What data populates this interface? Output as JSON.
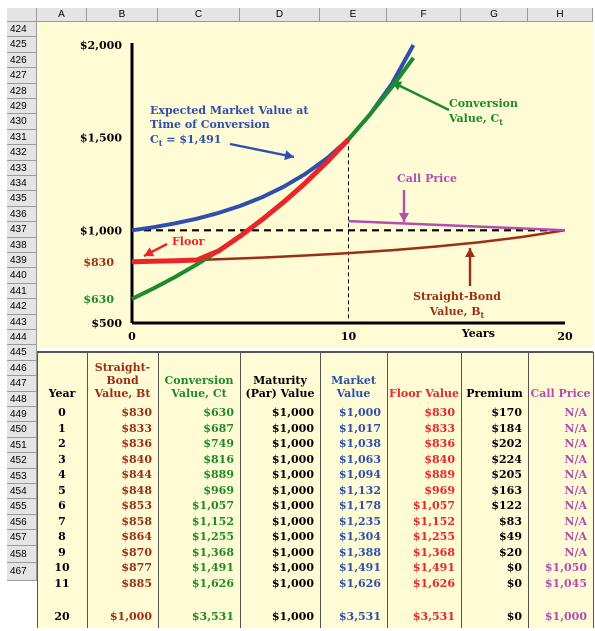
{
  "columns": [
    "A",
    "B",
    "C",
    "D",
    "E",
    "F",
    "G",
    "H"
  ],
  "rows": [
    "424",
    "425",
    "426",
    "427",
    "428",
    "429",
    "430",
    "431",
    "432",
    "433",
    "434",
    "435",
    "436",
    "437",
    "438",
    "439",
    "440",
    "441",
    "442",
    "443",
    "444",
    "445",
    "446",
    "447",
    "448",
    "449",
    "450",
    "451",
    "452",
    "453",
    "454",
    "455",
    "456",
    "457",
    "458",
    "467"
  ],
  "colors": {
    "bond": "#9b2f13",
    "conversion": "#1d8a2e",
    "market": "#2f4fae",
    "floor": "#e8262a",
    "call": "#b04fb0",
    "black": "#000000"
  },
  "chart_data": {
    "type": "line",
    "ylim": [
      500,
      2000
    ],
    "xlim": [
      0,
      20
    ],
    "y_ticks": [
      {
        "v": 2000,
        "label": "$2,000"
      },
      {
        "v": 1500,
        "label": "$1,500"
      },
      {
        "v": 1000,
        "label": "$1,000"
      },
      {
        "v": 500,
        "label": "$500"
      }
    ],
    "x_ticks": [
      {
        "v": 0,
        "label": "0"
      },
      {
        "v": 10,
        "label": "10"
      },
      {
        "v": 20,
        "label": "20"
      }
    ],
    "xlabel": "Years",
    "extra_y_labels": [
      {
        "v": 830,
        "label": "$830",
        "color": "#9b2f13"
      },
      {
        "v": 630,
        "label": "$630",
        "color": "#1d8a2e"
      }
    ],
    "series": [
      {
        "key": "market",
        "x": [
          0,
          1,
          2,
          3,
          4,
          5,
          6,
          7,
          8,
          9,
          10,
          11,
          12,
          13
        ],
        "y": [
          1000,
          1017,
          1038,
          1063,
          1094,
          1132,
          1178,
          1235,
          1304,
          1388,
          1491,
          1626,
          1790,
          2000
        ]
      },
      {
        "key": "conversion",
        "x": [
          0,
          1,
          2,
          3,
          4,
          5,
          6,
          7,
          8,
          9,
          10,
          11,
          12,
          13
        ],
        "y": [
          630,
          687,
          749,
          816,
          889,
          969,
          1057,
          1152,
          1255,
          1368,
          1491,
          1626,
          1772,
          1931
        ]
      },
      {
        "key": "floor",
        "x": [
          0,
          1,
          2,
          3,
          4,
          5,
          6,
          7,
          8,
          9,
          10
        ],
        "y": [
          830,
          833,
          836,
          840,
          889,
          969,
          1057,
          1152,
          1255,
          1368,
          1491
        ]
      },
      {
        "key": "bond",
        "x": [
          0,
          2,
          4,
          6,
          8,
          10,
          12,
          14,
          16,
          18,
          20
        ],
        "y": [
          830,
          836,
          844,
          853,
          864,
          877,
          893,
          912,
          935,
          964,
          1000
        ]
      },
      {
        "key": "call",
        "x": [
          10,
          20
        ],
        "y": [
          1050,
          1000
        ]
      }
    ],
    "annotations": {
      "market": [
        "Expected Market Value at",
        "Time of Conversion",
        "C",
        "t",
        "= $1,491"
      ],
      "conversion": [
        "Conversion",
        "Value, C",
        "t"
      ],
      "call": "Call Price",
      "floor": "Floor",
      "bond": [
        "Straight-Bond",
        "Value, B",
        "t"
      ]
    }
  },
  "table": {
    "headers": [
      {
        "text": "Year",
        "color": "#000000"
      },
      {
        "text": "Straight-Bond Value, Bt",
        "color": "#9b2f13"
      },
      {
        "text": "Conversion Value, Ct",
        "color": "#1d8a2e"
      },
      {
        "text": "Maturity (Par) Value",
        "color": "#000000"
      },
      {
        "text": "Market Value",
        "color": "#2f4fae"
      },
      {
        "text": "Floor Value",
        "color": "#e8262a"
      },
      {
        "text": "Premium",
        "color": "#000000"
      },
      {
        "text": "Call Price",
        "color": "#b04fb0"
      }
    ],
    "rows": [
      [
        "0",
        "$830",
        "$630",
        "$1,000",
        "$1,000",
        "$830",
        "$170",
        "N/A"
      ],
      [
        "1",
        "$833",
        "$687",
        "$1,000",
        "$1,017",
        "$833",
        "$184",
        "N/A"
      ],
      [
        "2",
        "$836",
        "$749",
        "$1,000",
        "$1,038",
        "$836",
        "$202",
        "N/A"
      ],
      [
        "3",
        "$840",
        "$816",
        "$1,000",
        "$1,063",
        "$840",
        "$224",
        "N/A"
      ],
      [
        "4",
        "$844",
        "$889",
        "$1,000",
        "$1,094",
        "$889",
        "$205",
        "N/A"
      ],
      [
        "5",
        "$848",
        "$969",
        "$1,000",
        "$1,132",
        "$969",
        "$163",
        "N/A"
      ],
      [
        "6",
        "$853",
        "$1,057",
        "$1,000",
        "$1,178",
        "$1,057",
        "$122",
        "N/A"
      ],
      [
        "7",
        "$858",
        "$1,152",
        "$1,000",
        "$1,235",
        "$1,152",
        "$83",
        "N/A"
      ],
      [
        "8",
        "$864",
        "$1,255",
        "$1,000",
        "$1,304",
        "$1,255",
        "$49",
        "N/A"
      ],
      [
        "9",
        "$870",
        "$1,368",
        "$1,000",
        "$1,388",
        "$1,368",
        "$20",
        "N/A"
      ],
      [
        "10",
        "$877",
        "$1,491",
        "$1,000",
        "$1,491",
        "$1,491",
        "$0",
        "$1,050"
      ],
      [
        "11",
        "$885",
        "$1,626",
        "$1,000",
        "$1,626",
        "$1,626",
        "$0",
        "$1,045"
      ],
      [
        "20",
        "$1,000",
        "$3,531",
        "$1,000",
        "$3,531",
        "$3,531",
        "$0",
        "$1,000"
      ]
    ]
  }
}
